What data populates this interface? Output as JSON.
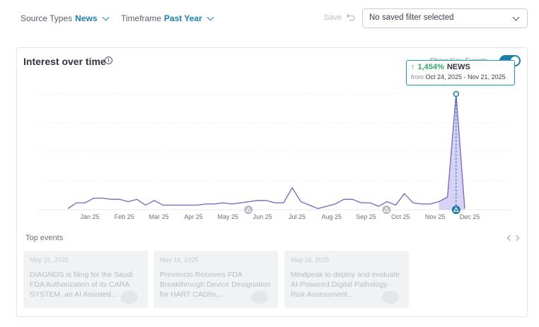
{
  "filters": {
    "source_label": "Source Types",
    "source_value": "News",
    "timeframe_label": "Timeframe",
    "timeframe_value": "Past Year"
  },
  "save_label": "Save",
  "saved_filter_value": "No saved filter selected",
  "card": {
    "title": "Interest over time",
    "info_glyph": "i",
    "key_events_label": "Show Key Events"
  },
  "tooltip": {
    "arrow": "↑",
    "pct": "1,454%",
    "label": "NEWS",
    "from_label": "from",
    "range": "Oct 24, 2025 - Nov 21, 2025"
  },
  "chart_data": {
    "type": "line",
    "x_tick_labels": [
      "Jan 25",
      "Feb 25",
      "Mar 25",
      "Apr 25",
      "May 25",
      "Jun 25",
      "Jul 25",
      "Aug 25",
      "Sep 25",
      "Oct 25",
      "Nov 25",
      "Dec 25"
    ],
    "ylim": [
      0,
      100
    ],
    "grid": "horizontal",
    "series": [
      {
        "values": [
          1,
          6,
          6,
          10,
          10,
          9,
          9,
          7,
          9,
          4,
          8,
          4,
          4,
          4,
          4,
          4,
          5,
          5,
          6,
          5,
          6,
          7,
          8,
          8,
          6,
          6,
          19,
          7,
          4,
          1,
          3,
          5,
          9,
          9,
          6,
          6,
          3,
          7,
          4,
          14,
          6,
          5,
          5,
          7,
          11,
          100,
          1
        ],
        "color": "#7b6fc4"
      }
    ],
    "highlight_index": 45,
    "key_events_x": [
      "Jun 25",
      "Oct 25",
      "Dec 25"
    ]
  },
  "top_events": {
    "label": "Top events",
    "items": [
      {
        "date": "May 16, 2025",
        "title": "DIAGNOS is filing for the Saudi FDA Authorization of its CARA SYSTEM, an AI Assisted..."
      },
      {
        "date": "May 16, 2025",
        "title": "Prevencio Receives FDA Breakthrough Device Designation for HART CADhs,..."
      },
      {
        "date": "May 16, 2025",
        "title": "Mindpeak to deploy and evaluate AI-Powered Digital Pathology Risk Assessment..."
      }
    ]
  }
}
